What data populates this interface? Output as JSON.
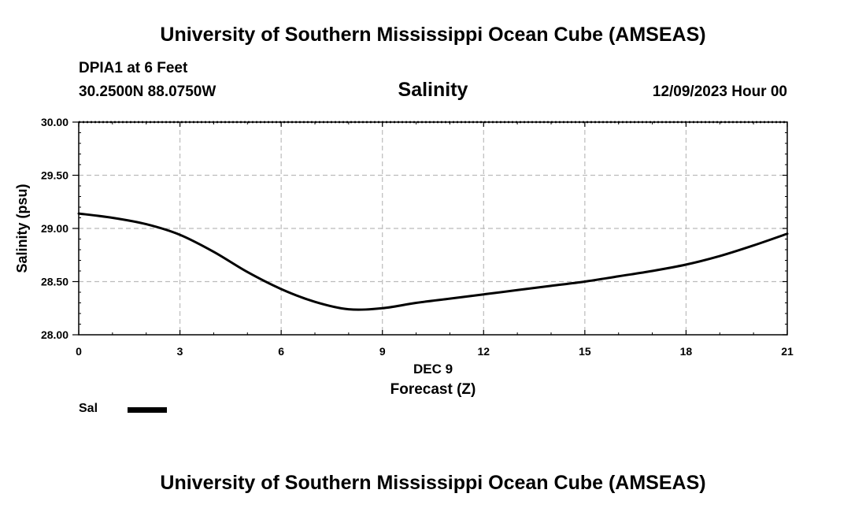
{
  "header": {
    "title_top": "University of Southern Mississippi Ocean Cube (AMSEAS)",
    "station": "DPIA1 at 6 Feet",
    "coords": "30.2500N  88.0750W",
    "chart_title": "Salinity",
    "date": "12/09/2023 Hour 00"
  },
  "footer": {
    "title_bottom": "University of Southern Mississippi Ocean Cube (AMSEAS)"
  },
  "legend": {
    "label": "Sal",
    "color": "#000000"
  },
  "chart_data": {
    "type": "line",
    "title": "Salinity",
    "xlabel": "Forecast (Z)",
    "xsublabel": "DEC 9",
    "ylabel": "Salinity (psu)",
    "xlim": [
      0,
      21
    ],
    "ylim": [
      28.0,
      30.0
    ],
    "xticks": [
      0,
      3,
      6,
      9,
      12,
      15,
      18,
      21
    ],
    "yticks": [
      "28.00",
      "28.50",
      "29.00",
      "29.50",
      "30.00"
    ],
    "grid": true,
    "series": [
      {
        "name": "Sal",
        "x": [
          0,
          1,
          2,
          3,
          4,
          5,
          6,
          7,
          8,
          9,
          10,
          11,
          12,
          13,
          14,
          15,
          16,
          17,
          18,
          19,
          20,
          21
        ],
        "values": [
          29.14,
          29.1,
          29.04,
          28.94,
          28.78,
          28.59,
          28.43,
          28.31,
          28.24,
          28.25,
          28.3,
          28.34,
          28.38,
          28.42,
          28.46,
          28.5,
          28.55,
          28.6,
          28.66,
          28.74,
          28.84,
          28.95
        ]
      }
    ]
  }
}
